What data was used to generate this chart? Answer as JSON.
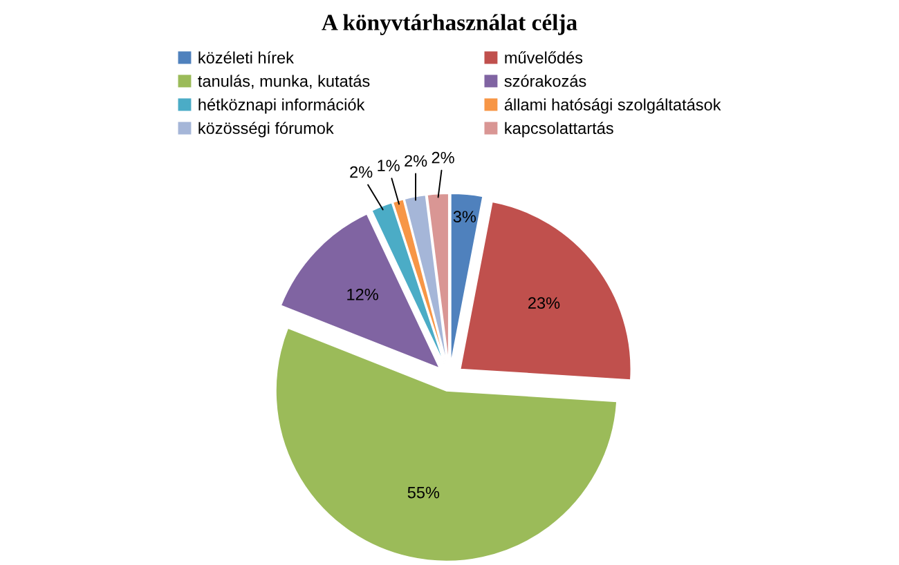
{
  "chart_data": {
    "type": "pie",
    "title": "A könyvtárhasználat célja",
    "categories": [
      "közéleti hírek",
      "művelődés",
      "tanulás, munka, kutatás",
      "szórakozás",
      "hétköznapi információk",
      "állami hatósági szolgáltatások",
      "közösségi fórumok",
      "kapcsolattartás"
    ],
    "values": [
      3,
      23,
      55,
      12,
      2,
      1,
      2,
      2
    ],
    "value_labels": [
      "3%",
      "23%",
      "55%",
      "12%",
      "2%",
      "1%",
      "2%",
      "2%"
    ],
    "colors": [
      "#4f81bd",
      "#c0504d",
      "#9bbb59",
      "#8064a2",
      "#4bacc6",
      "#f79646",
      "#a5b6d8",
      "#d99694"
    ],
    "legend": "top"
  }
}
